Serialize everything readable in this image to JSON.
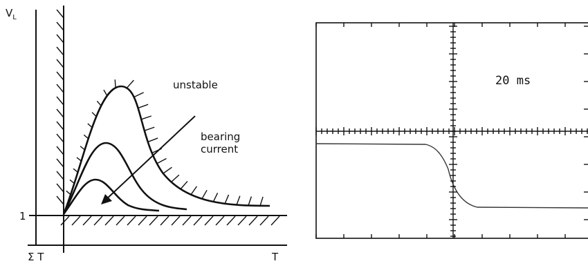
{
  "left_panel": {
    "y_axis_label": {
      "main": "V",
      "subscript": "L"
    },
    "level_label": "1",
    "x_origin_label": "Σ T",
    "x_axis_label": "T",
    "annotations": {
      "unstable": "unstable",
      "bearing_current": [
        "bearing",
        "current"
      ]
    }
  },
  "right_panel": {
    "timebase_label": "20 ms"
  }
}
